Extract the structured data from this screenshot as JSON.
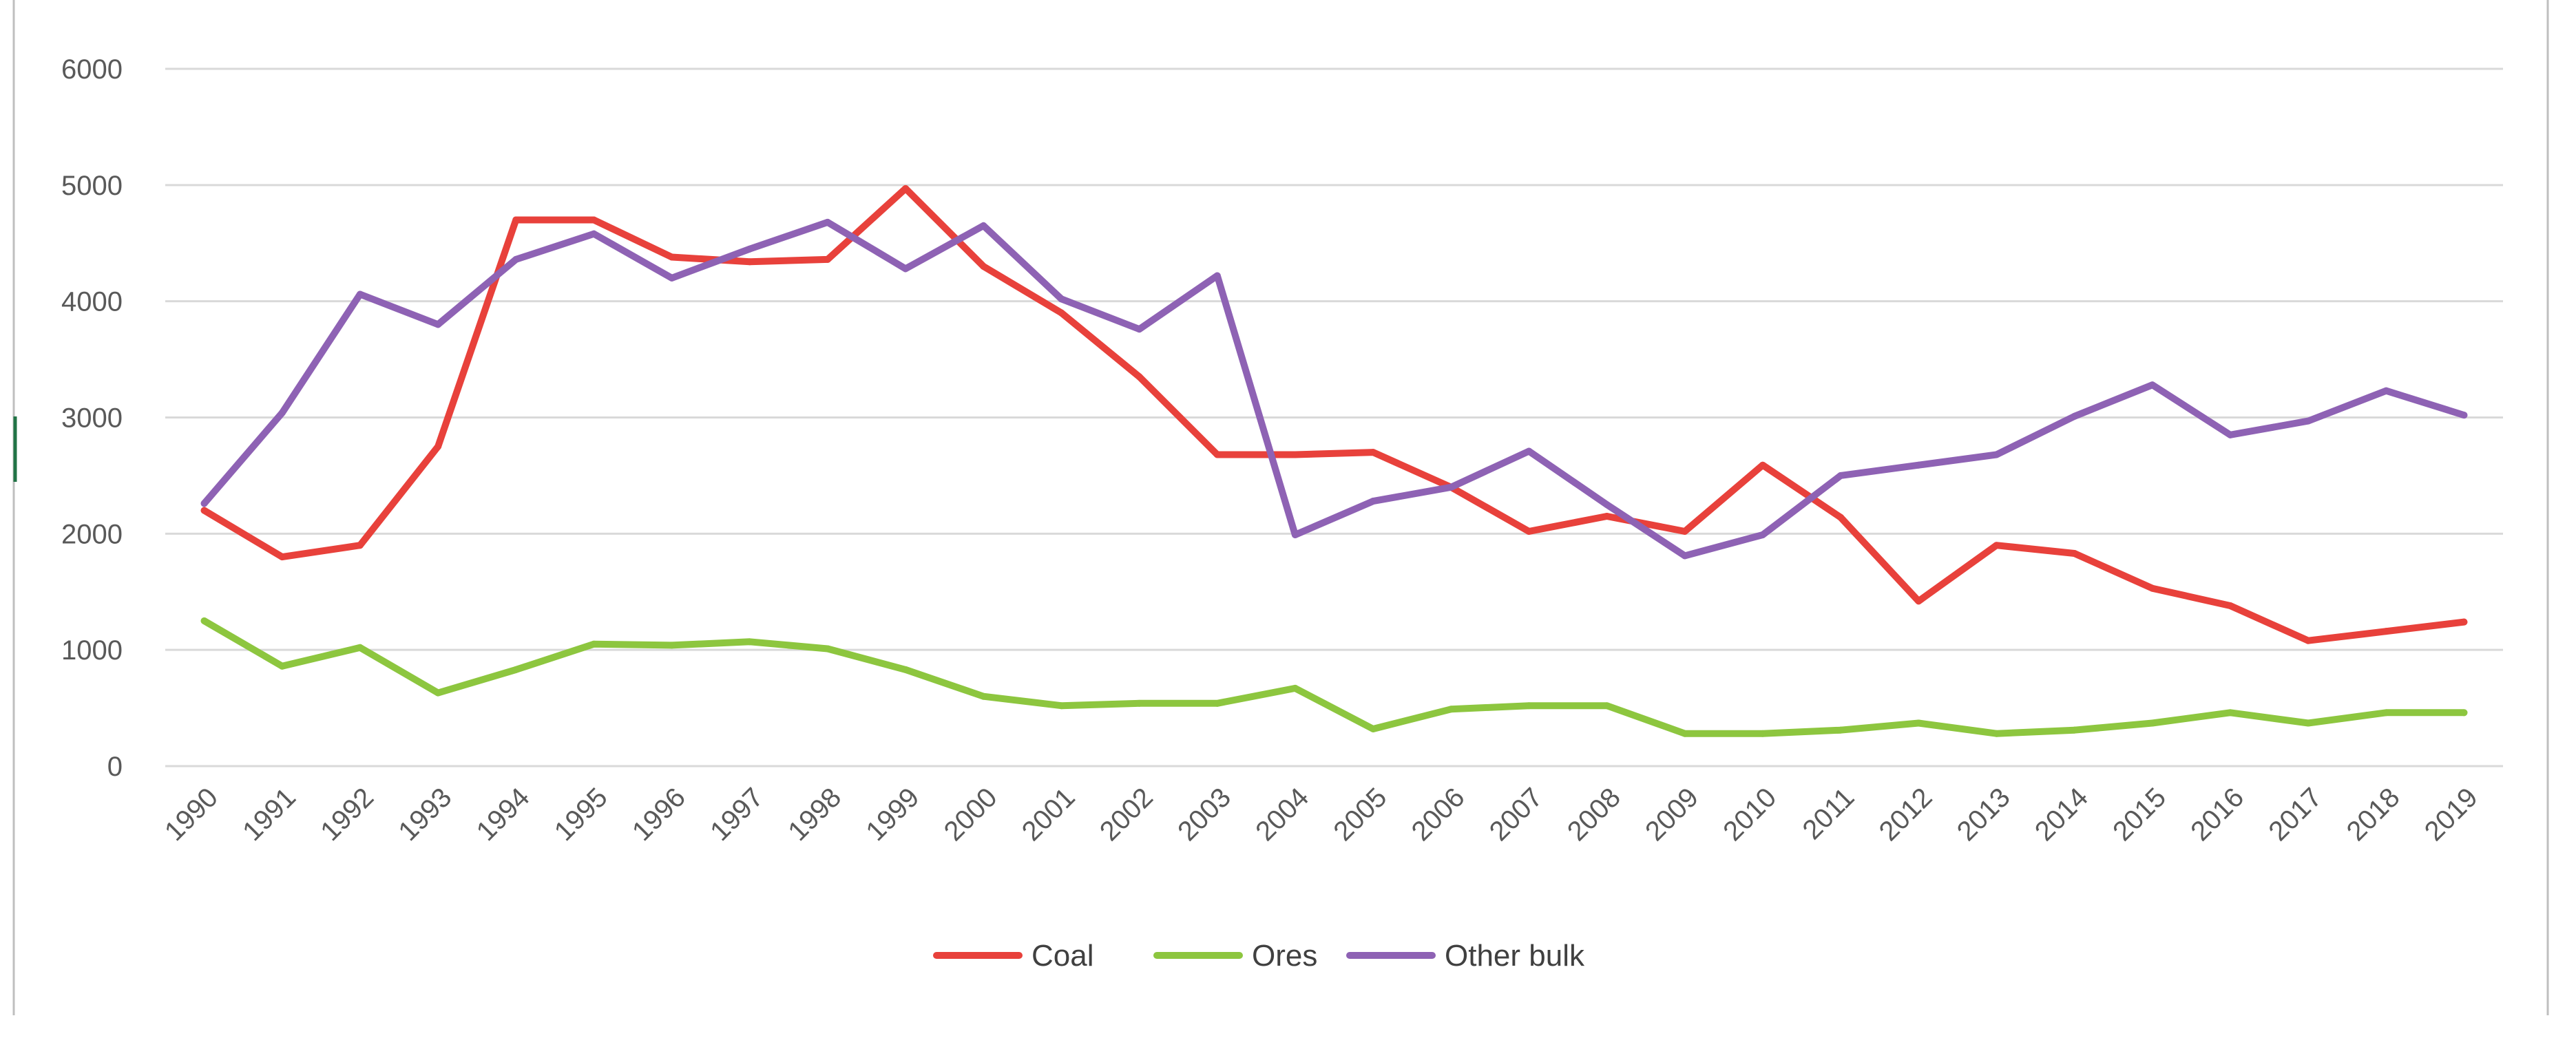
{
  "chart_data": {
    "type": "line",
    "title": "",
    "xlabel": "",
    "ylabel": "",
    "ylim": [
      0,
      6000
    ],
    "yticks": [
      0,
      1000,
      2000,
      3000,
      4000,
      5000,
      6000
    ],
    "grid": true,
    "legend_position": "bottom",
    "categories": [
      "1990",
      "1991",
      "1992",
      "1993",
      "1994",
      "1995",
      "1996",
      "1997",
      "1998",
      "1999",
      "2000",
      "2001",
      "2002",
      "2003",
      "2004",
      "2005",
      "2006",
      "2007",
      "2008",
      "2009",
      "2010",
      "2011",
      "2012",
      "2013",
      "2014",
      "2015",
      "2016",
      "2017",
      "2018",
      "2019"
    ],
    "series": [
      {
        "name": "Coal",
        "color": "#e8413b",
        "values": [
          2200,
          1800,
          1900,
          2750,
          4700,
          4700,
          4380,
          4340,
          4360,
          4970,
          4300,
          3900,
          3350,
          2680,
          2680,
          2700,
          2400,
          2020,
          2150,
          2020,
          2590,
          2140,
          1420,
          1900,
          1830,
          1530,
          1380,
          1080,
          1160,
          1240
        ]
      },
      {
        "name": "Ores",
        "color": "#8dc63f",
        "values": [
          1250,
          860,
          1020,
          630,
          830,
          1050,
          1040,
          1070,
          1010,
          830,
          600,
          520,
          540,
          540,
          670,
          320,
          490,
          520,
          520,
          280,
          280,
          310,
          370,
          280,
          310,
          370,
          460,
          370,
          460,
          460
        ]
      },
      {
        "name": "Other bulk",
        "color": "#8e62b4",
        "values": [
          2260,
          3040,
          4060,
          3800,
          4360,
          4580,
          4200,
          4450,
          4680,
          4280,
          4650,
          4020,
          3760,
          4220,
          1990,
          2280,
          2400,
          2710,
          2250,
          1810,
          1990,
          2500,
          2590,
          2680,
          3010,
          3280,
          2850,
          2970,
          3230,
          3020
        ]
      }
    ]
  }
}
